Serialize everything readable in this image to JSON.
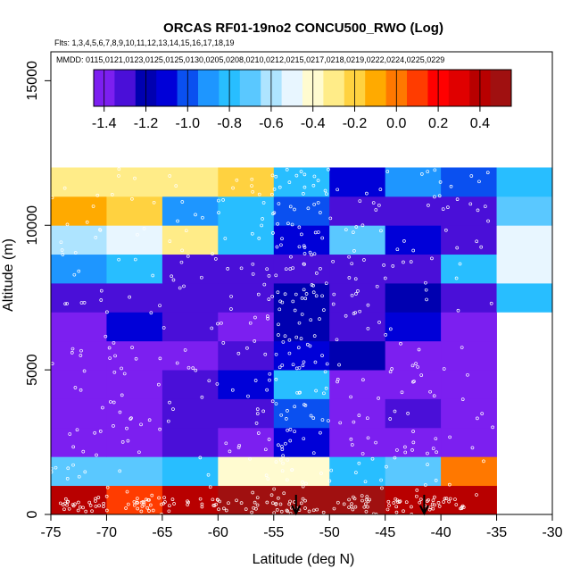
{
  "chart_data": {
    "type": "heatmap",
    "title": "ORCAS RF01-19no2 CONCU500_RWO (Log)",
    "subtitle_flights": "Flts: 1,3,4,5,6,7,8,9,10,11,12,13,14,15,16,17,18,19",
    "subtitle_dates": "MMDD: 0115,0121,0123,0125,0125,0130,0205,0208,0210,0212,0215,0217,0218,0219,0222,0224,0225,0229",
    "xlabel": "Latitude (deg N)",
    "ylabel": "Altitude (m)",
    "xlim": [
      -75,
      -30
    ],
    "ylim": [
      0,
      16000
    ],
    "x_ticks": [
      "-75",
      "-70",
      "-65",
      "-60",
      "-55",
      "-50",
      "-45",
      "-40",
      "-35",
      "-30"
    ],
    "y_ticks": [
      "0",
      "5000",
      "10000",
      "15000"
    ],
    "colorbar": {
      "range": [
        -1.45,
        0.55
      ],
      "ticks": [
        "-1.4",
        "-1.2",
        "-1.0",
        "-0.8",
        "-0.6",
        "-0.4",
        "-0.2",
        "0.0",
        "0.2",
        "0.4"
      ],
      "colors": [
        "#7c1ff0",
        "#4a0fd8",
        "#0000b0",
        "#0000d8",
        "#0a50f0",
        "#1e96ff",
        "#28beff",
        "#5ac8ff",
        "#aee4ff",
        "#e8f6ff",
        "#fffbd0",
        "#ffec88",
        "#ffd240",
        "#ffaa00",
        "#ff7800",
        "#ff3c00",
        "#ff0000",
        "#e00000",
        "#b80000",
        "#a01010"
      ]
    },
    "lat_edges": [
      -75,
      -70,
      -65,
      -60,
      -55,
      -50,
      -45,
      -40,
      -35,
      -30
    ],
    "alt_edges": [
      0,
      1000,
      2000,
      3000,
      4000,
      5000,
      6000,
      7000,
      8000,
      9000,
      10000,
      11000,
      12000
    ],
    "grid_values": [
      [
        0.35,
        0.05,
        0.35,
        0.45,
        0.45,
        0.45,
        0.35,
        0.35,
        null
      ],
      [
        -0.75,
        -0.75,
        -0.8,
        -0.45,
        -0.45,
        -0.8,
        -0.65,
        -0.05,
        null
      ],
      [
        -1.35,
        -1.4,
        -1.25,
        -1.4,
        -1.05,
        -1.35,
        -1.4,
        -1.4,
        null
      ],
      [
        -1.4,
        -1.4,
        -1.25,
        -1.25,
        -1.0,
        -1.35,
        -1.25,
        -1.4,
        null
      ],
      [
        -1.4,
        -1.4,
        -1.25,
        -1.15,
        -0.85,
        -1.4,
        -1.4,
        -1.4,
        null
      ],
      [
        -1.4,
        -1.4,
        -1.35,
        -1.3,
        -1.05,
        -1.2,
        -1.4,
        -1.4,
        null
      ],
      [
        -1.35,
        -1.1,
        -1.3,
        -1.35,
        -1.2,
        -1.25,
        -1.15,
        -1.4,
        null
      ],
      [
        -1.3,
        -1.3,
        -1.3,
        -1.25,
        -1.2,
        -1.3,
        -1.2,
        -1.3,
        -0.8
      ],
      [
        -0.95,
        -0.85,
        -1.3,
        -1.25,
        -1.3,
        -1.25,
        -1.3,
        -0.85,
        -0.5
      ],
      [
        -0.6,
        -0.5,
        -0.35,
        -0.8,
        -1.15,
        -0.75,
        -1.05,
        -1.3,
        -0.55
      ],
      [
        -0.1,
        -0.25,
        -0.9,
        -0.8,
        -1.0,
        -1.3,
        -1.25,
        -1.3,
        -0.75
      ],
      [
        -0.35,
        -0.35,
        -0.3,
        -0.2,
        -0.85,
        -1.05,
        -0.95,
        -1.0,
        -0.85
      ]
    ],
    "arrows_lat": [
      -53,
      -41.5
    ]
  }
}
